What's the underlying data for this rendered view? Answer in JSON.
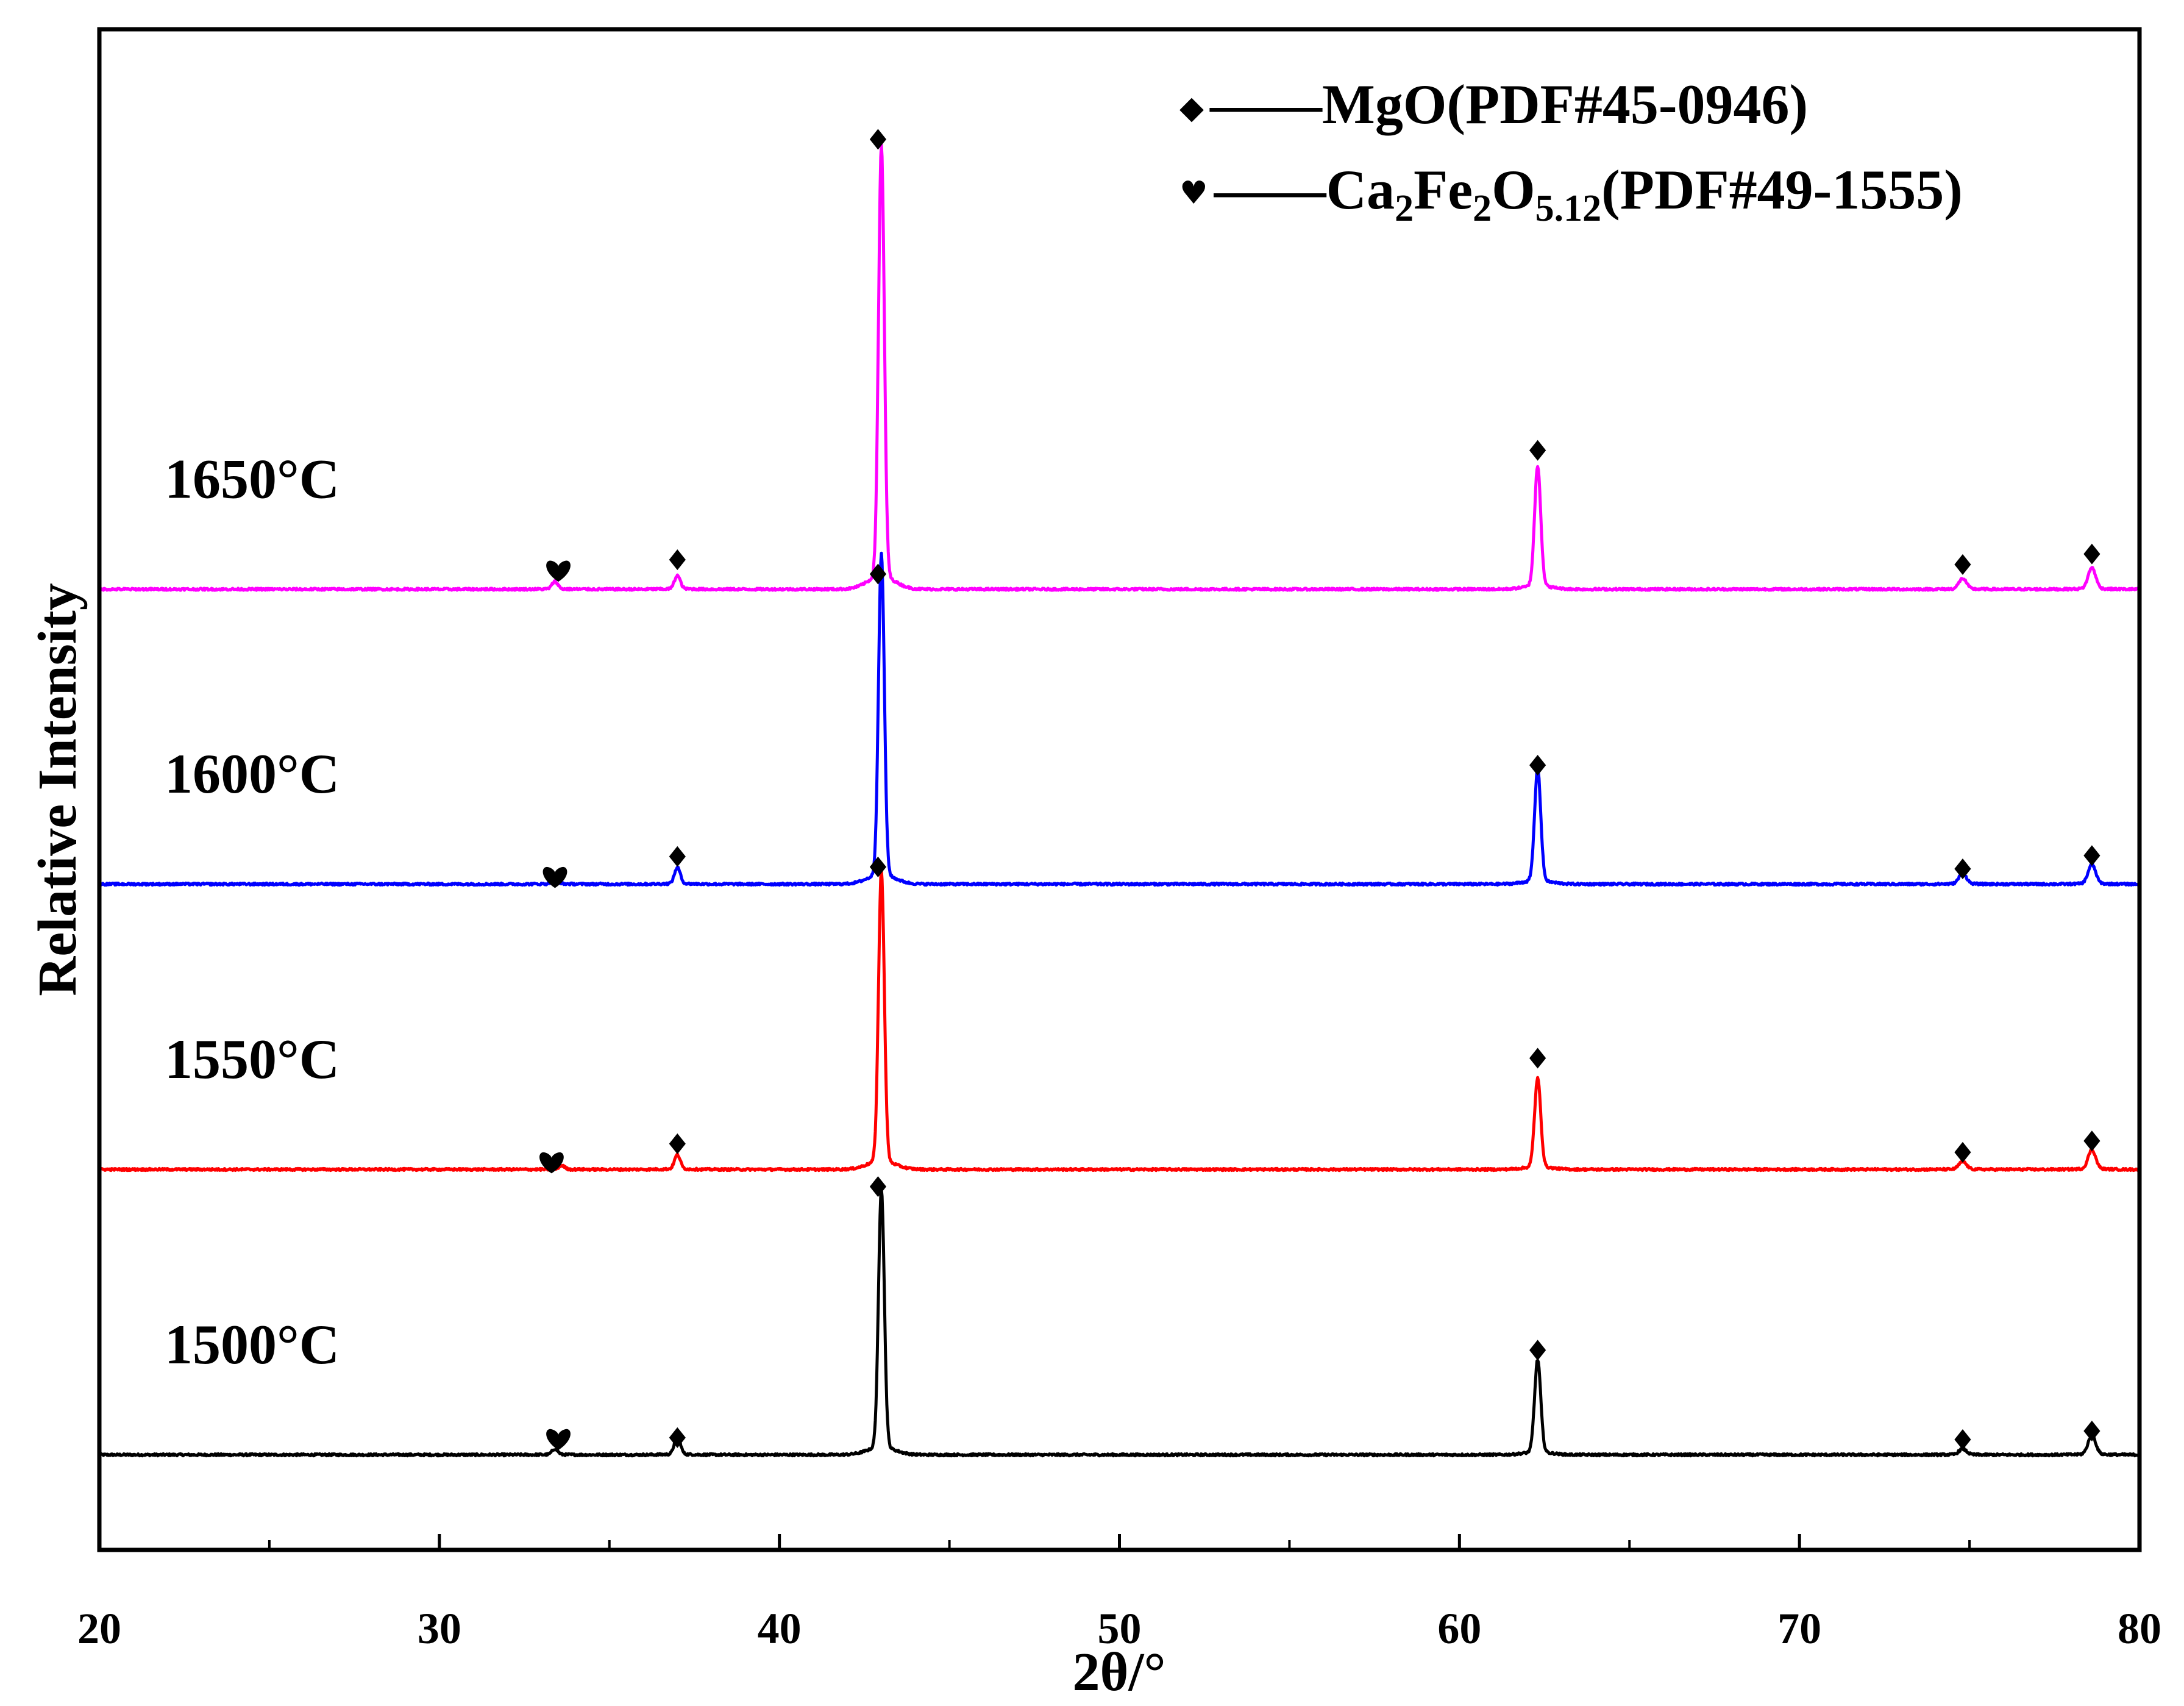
{
  "chart_data": {
    "type": "line",
    "title": "",
    "xlabel": "2θ/°",
    "ylabel": "Relative Intensity",
    "xlim": [
      20,
      80
    ],
    "xticks": [
      20,
      30,
      40,
      50,
      60,
      70,
      80
    ],
    "x_minor_ticks": [
      25,
      35,
      45,
      55,
      65,
      75
    ],
    "grid": false,
    "legend_position": "top-right",
    "legend": [
      {
        "symbol": "diamond",
        "symbol_char": "◆",
        "dash": "——",
        "label": "MgO(PDF#45-0946)"
      },
      {
        "symbol": "heart",
        "symbol_char": "♥",
        "dash": "——",
        "label_parts": [
          {
            "text": "Ca",
            "sub": false
          },
          {
            "text": "2",
            "sub": true
          },
          {
            "text": "Fe",
            "sub": false
          },
          {
            "text": "2",
            "sub": true
          },
          {
            "text": "O",
            "sub": false
          },
          {
            "text": "5.12",
            "sub": true
          },
          {
            "text": "(PDF#49-1555)",
            "sub": false
          }
        ]
      }
    ],
    "series": [
      {
        "name": "1500°C",
        "color": "#000000",
        "baseline_intensity": 0.1,
        "peaks": [
          [
            33.4,
            0.006
          ],
          [
            37.0,
            0.02
          ],
          [
            43.0,
            0.272
          ],
          [
            62.3,
            0.097
          ],
          [
            74.8,
            0.006
          ],
          [
            78.6,
            0.02
          ]
        ],
        "markers": [
          {
            "x": 33.5,
            "symbol": "heart",
            "y": 0.117
          },
          {
            "x": 37.0,
            "symbol": "diamond",
            "y": 0.118
          },
          {
            "x": 42.9,
            "symbol": "diamond",
            "y": 0.382
          },
          {
            "x": 62.3,
            "symbol": "diamond",
            "y": 0.21
          },
          {
            "x": 74.8,
            "symbol": "diamond",
            "y": 0.116
          },
          {
            "x": 78.6,
            "symbol": "diamond",
            "y": 0.125
          }
        ]
      },
      {
        "name": "1550°C",
        "color": "#ff0000",
        "baseline_intensity": 0.4,
        "peaks": [
          [
            33.6,
            0.004
          ],
          [
            37.0,
            0.015
          ],
          [
            43.0,
            0.305
          ],
          [
            62.3,
            0.093
          ],
          [
            74.8,
            0.008
          ],
          [
            78.6,
            0.02
          ]
        ],
        "markers": [
          {
            "x": 33.3,
            "symbol": "heart",
            "y": 0.408
          },
          {
            "x": 37.0,
            "symbol": "diamond",
            "y": 0.427
          },
          {
            "x": 42.9,
            "symbol": "diamond",
            "y": 0.718
          },
          {
            "x": 62.3,
            "symbol": "diamond",
            "y": 0.517
          },
          {
            "x": 74.8,
            "symbol": "diamond",
            "y": 0.418
          },
          {
            "x": 78.6,
            "symbol": "diamond",
            "y": 0.43
          }
        ]
      },
      {
        "name": "1600°C",
        "color": "#0000ff",
        "baseline_intensity": 0.7,
        "peaks": [
          [
            33.4,
            0.008
          ],
          [
            37.0,
            0.017
          ],
          [
            43.0,
            0.337
          ],
          [
            62.3,
            0.118
          ],
          [
            74.8,
            0.011
          ],
          [
            78.6,
            0.02
          ]
        ],
        "markers": [
          {
            "x": 33.4,
            "symbol": "heart",
            "y": 0.708
          },
          {
            "x": 37.0,
            "symbol": "diamond",
            "y": 0.729
          },
          {
            "x": 42.9,
            "symbol": "diamond",
            "y": 1.026
          },
          {
            "x": 62.3,
            "symbol": "diamond",
            "y": 0.825
          },
          {
            "x": 74.8,
            "symbol": "diamond",
            "y": 0.716
          },
          {
            "x": 78.6,
            "symbol": "diamond",
            "y": 0.73
          }
        ]
      },
      {
        "name": "1650°C",
        "color": "#ff00ff",
        "baseline_intensity": 1.01,
        "peaks": [
          [
            33.4,
            0.008
          ],
          [
            37.0,
            0.014
          ],
          [
            43.0,
            0.453
          ],
          [
            62.3,
            0.126
          ],
          [
            74.8,
            0.011
          ],
          [
            78.6,
            0.022
          ]
        ],
        "markers": [
          {
            "x": 33.5,
            "symbol": "heart",
            "y": 1.03
          },
          {
            "x": 37.0,
            "symbol": "diamond",
            "y": 1.041
          },
          {
            "x": 42.9,
            "symbol": "diamond",
            "y": 1.483
          },
          {
            "x": 62.3,
            "symbol": "diamond",
            "y": 1.156
          },
          {
            "x": 74.8,
            "symbol": "diamond",
            "y": 1.036
          },
          {
            "x": 78.6,
            "symbol": "diamond",
            "y": 1.047
          }
        ]
      }
    ]
  }
}
